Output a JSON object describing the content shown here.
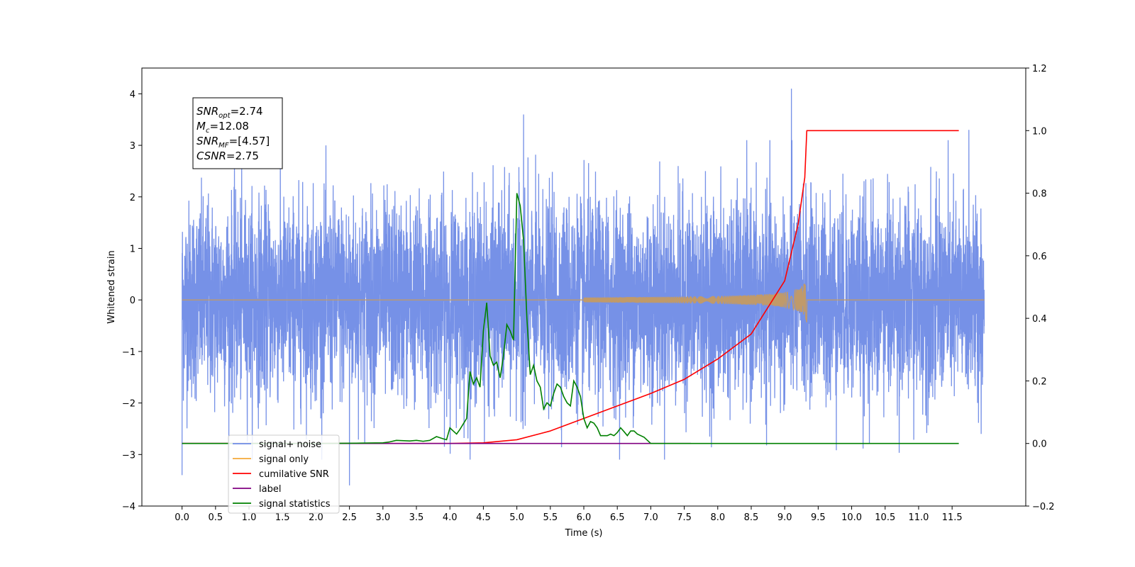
{
  "chart_data": {
    "type": "line",
    "xlabel": "Time (s)",
    "ylabel_left": "Whitened strain",
    "ylabel_right": "",
    "xlim": [
      -0.6,
      12.6
    ],
    "ylim_left": [
      -4,
      4.5
    ],
    "ylim_right": [
      -0.2,
      1.2
    ],
    "x_ticks": [
      "0.0",
      "0.5",
      "1.0",
      "1.5",
      "2.0",
      "2.5",
      "3.0",
      "3.5",
      "4.0",
      "4.5",
      "5.0",
      "5.5",
      "6.0",
      "6.5",
      "7.0",
      "7.5",
      "8.0",
      "8.5",
      "9.0",
      "9.5",
      "10.0",
      "10.5",
      "11.0",
      "11.5"
    ],
    "x_tick_values": [
      0,
      0.5,
      1,
      1.5,
      2,
      2.5,
      3,
      3.5,
      4,
      4.5,
      5,
      5.5,
      6,
      6.5,
      7,
      7.5,
      8,
      8.5,
      9,
      9.5,
      10,
      10.5,
      11,
      11.5
    ],
    "y_left_ticks": [
      4,
      3,
      2,
      1,
      0,
      -1,
      -2,
      -3,
      -4
    ],
    "y_left_tick_labels": [
      "4",
      "3",
      "2",
      "1",
      "0",
      "−1",
      "−2",
      "−3",
      "−4"
    ],
    "y_right_ticks": [
      1.2,
      1.0,
      0.8,
      0.6,
      0.4,
      0.2,
      0.0,
      -0.2
    ],
    "y_right_tick_labels": [
      "1.2",
      "1.0",
      "0.8",
      "0.6",
      "0.4",
      "0.2",
      "0.0",
      "−0.2"
    ],
    "grid": false,
    "legend_placement": "lower-left",
    "colors": {
      "signal_noise": "#6f8be6",
      "signal_only": "#f4a93a",
      "cumulative_snr": "#ff0000",
      "label": "#800080",
      "signal_statistics": "#008000"
    },
    "series": [
      {
        "name": "signal+ noise",
        "axis": "left",
        "description_range": [
          -3.6,
          4.1
        ],
        "notable_peaks": [
          {
            "x": 5.1,
            "y": 3.6
          },
          {
            "x": 9.1,
            "y": 4.1
          },
          {
            "x": 11.75,
            "y": 3.3
          },
          {
            "x": 2.5,
            "y": -3.6
          },
          {
            "x": 0.0,
            "y": -3.4
          }
        ]
      },
      {
        "name": "signal only",
        "axis": "left",
        "chirp_start": 6.0,
        "chirp_end": 9.33,
        "peak_amplitude": 0.45
      },
      {
        "name": "cumilative SNR",
        "axis": "right",
        "x": [
          0,
          4.0,
          4.5,
          5.0,
          5.5,
          6.0,
          6.5,
          7.0,
          7.5,
          8.0,
          8.5,
          9.0,
          9.2,
          9.3,
          9.33,
          9.35,
          11.6
        ],
        "y": [
          0,
          0,
          0.002,
          0.012,
          0.04,
          0.08,
          0.12,
          0.16,
          0.205,
          0.27,
          0.35,
          0.52,
          0.7,
          0.85,
          1.0,
          1.0,
          1.0
        ]
      },
      {
        "name": "label",
        "axis": "right",
        "x": [
          0,
          7.6
        ],
        "y": [
          0,
          0
        ]
      },
      {
        "name": "signal statistics",
        "axis": "right",
        "x": [
          0,
          2.0,
          2.6,
          3.0,
          3.1,
          3.2,
          3.4,
          3.5,
          3.6,
          3.7,
          3.8,
          3.9,
          3.95,
          4.0,
          4.05,
          4.1,
          4.15,
          4.25,
          4.3,
          4.35,
          4.4,
          4.45,
          4.5,
          4.55,
          4.6,
          4.65,
          4.7,
          4.75,
          4.8,
          4.85,
          4.9,
          4.95,
          5.0,
          5.05,
          5.1,
          5.15,
          5.2,
          5.25,
          5.3,
          5.35,
          5.4,
          5.45,
          5.5,
          5.55,
          5.6,
          5.65,
          5.7,
          5.75,
          5.8,
          5.85,
          5.9,
          5.95,
          6.0,
          6.05,
          6.1,
          6.15,
          6.2,
          6.25,
          6.3,
          6.35,
          6.4,
          6.45,
          6.5,
          6.55,
          6.6,
          6.65,
          6.7,
          6.75,
          6.8,
          6.9,
          6.95,
          7.0,
          7.05,
          7.1,
          7.15,
          7.2,
          7.25,
          7.3,
          7.35,
          7.4,
          7.5,
          7.6,
          7.8,
          8.0,
          11.6
        ],
        "y": [
          0,
          0,
          0.001,
          0.002,
          0.005,
          0.01,
          0.008,
          0.01,
          0.007,
          0.01,
          0.022,
          0.015,
          0.012,
          0.05,
          0.04,
          0.03,
          0.045,
          0.08,
          0.23,
          0.19,
          0.21,
          0.18,
          0.36,
          0.45,
          0.28,
          0.25,
          0.26,
          0.21,
          0.28,
          0.38,
          0.36,
          0.33,
          0.8,
          0.76,
          0.65,
          0.4,
          0.22,
          0.25,
          0.2,
          0.18,
          0.11,
          0.13,
          0.12,
          0.16,
          0.19,
          0.18,
          0.15,
          0.13,
          0.12,
          0.2,
          0.18,
          0.15,
          0.08,
          0.05,
          0.07,
          0.065,
          0.05,
          0.025,
          0.025,
          0.025,
          0.03,
          0.025,
          0.035,
          0.05,
          0.038,
          0.025,
          0.04,
          0.04,
          0.03,
          0.02,
          0.01,
          0.0,
          0.0,
          0.0,
          0.0,
          0.0,
          0.0,
          0.0,
          0.0,
          0.0,
          0.0,
          0.0,
          0.0,
          0.0,
          0.0
        ]
      }
    ],
    "annotation": {
      "lines": [
        {
          "main": "SNR",
          "sub": "opt",
          "value": "=2.74"
        },
        {
          "main": "M",
          "sub": "c",
          "value": "=12.08"
        },
        {
          "main": "SNR",
          "sub": "MF",
          "value": "=[4.57]"
        },
        {
          "main": "CSNR",
          "sub": "",
          "value": "=2.75"
        }
      ]
    },
    "legend": [
      {
        "label": "signal+ noise",
        "color": "#6f8be6"
      },
      {
        "label": "signal only",
        "color": "#f4a93a"
      },
      {
        "label": "cumilative SNR",
        "color": "#ff0000"
      },
      {
        "label": "label",
        "color": "#800080"
      },
      {
        "label": "signal statistics",
        "color": "#008000"
      }
    ]
  }
}
